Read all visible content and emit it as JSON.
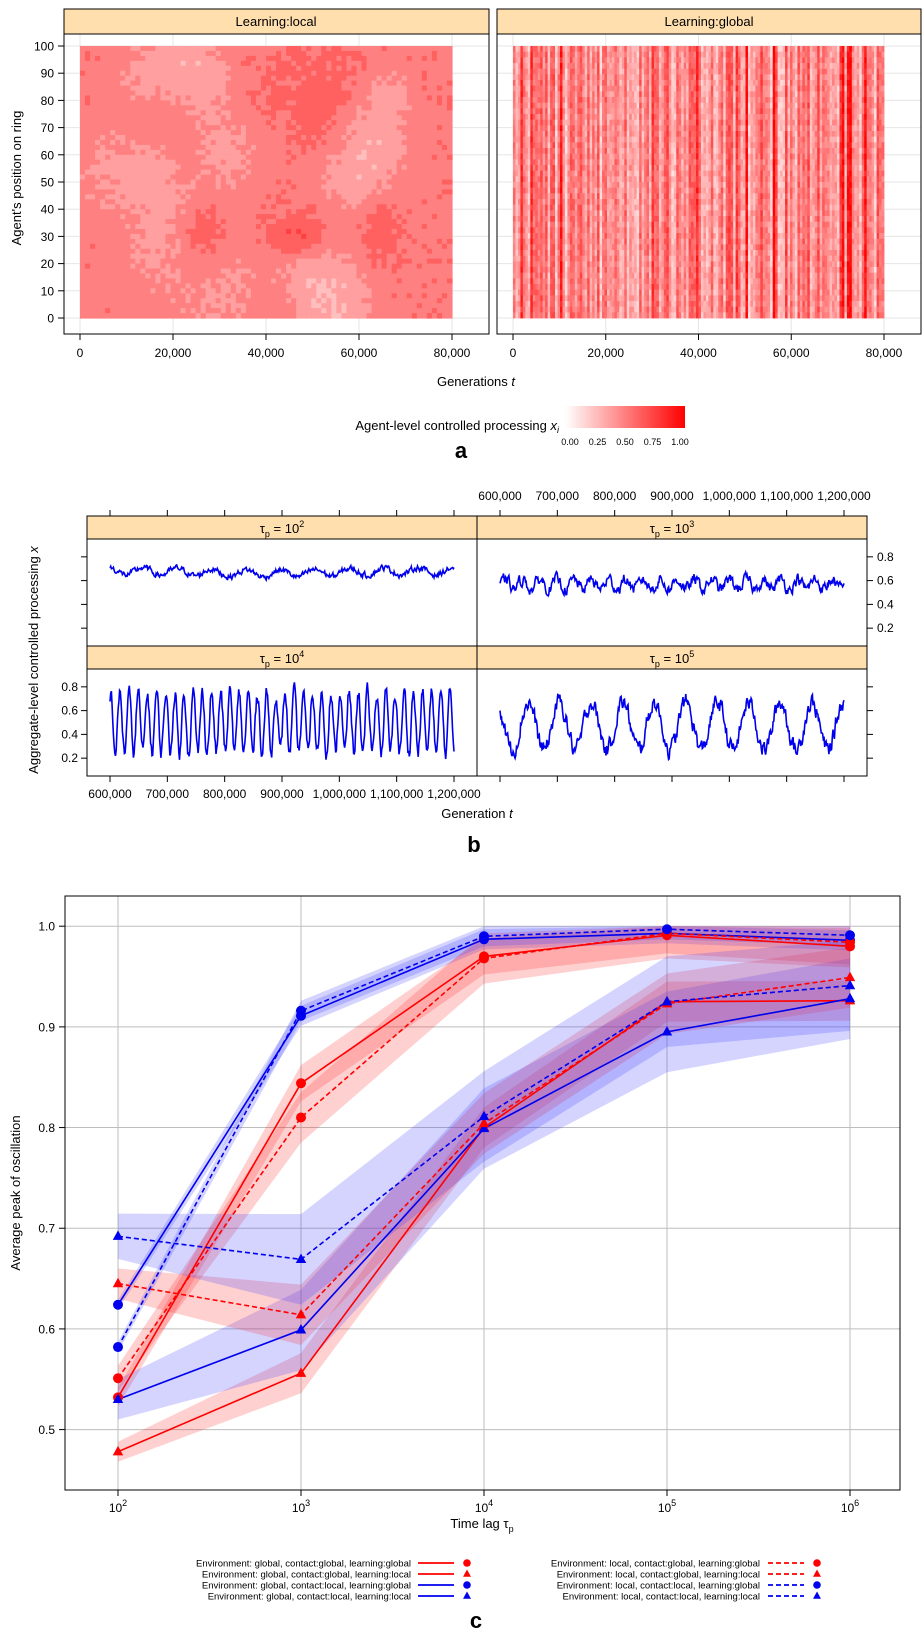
{
  "chart_data": [
    {
      "type": "heatmap",
      "panel_label": "a",
      "xlabel": "Generations",
      "xlabel_var": "t",
      "ylabel": "Agent's position on ring",
      "xlim": [
        0,
        80000
      ],
      "ylim": [
        0,
        100
      ],
      "x_ticks": [
        0,
        20000,
        40000,
        60000,
        80000
      ],
      "x_tick_labels": [
        "0",
        "20,000",
        "40,000",
        "60,000",
        "80,000"
      ],
      "y_ticks": [
        0,
        10,
        20,
        30,
        40,
        50,
        60,
        70,
        80,
        90,
        100
      ],
      "y_tick_labels": [
        "0",
        "10",
        "20",
        "30",
        "40",
        "50",
        "60",
        "70",
        "80",
        "90",
        "100"
      ],
      "panels": [
        {
          "title": "Learning:local",
          "pattern": "patchy"
        },
        {
          "title": "Learning:global",
          "pattern": "vertical-bands"
        }
      ],
      "colorbar": {
        "label": "Agent-level controlled processing",
        "label_var": "x",
        "label_sub": "i",
        "range": [
          0,
          1
        ],
        "ticks": [
          "0.00",
          "0.25",
          "0.50",
          "0.75",
          "1.00"
        ],
        "colors": [
          "#ffffff",
          "#ff0000"
        ]
      },
      "grid": true
    },
    {
      "type": "line",
      "panel_label": "b",
      "xlabel": "Generation",
      "xlabel_var": "t",
      "ylabel": "Aggregate-level controlled processing",
      "ylabel_var": "x",
      "xlim": [
        600000,
        1200000
      ],
      "ylim": [
        0.05,
        0.95
      ],
      "x_ticks": [
        600000,
        700000,
        800000,
        900000,
        1000000,
        1100000,
        1200000
      ],
      "x_tick_labels": [
        "600,000",
        "700,000",
        "800,000",
        "900,000",
        "1,000,000",
        "1,100,000",
        "1,200,000"
      ],
      "y_ticks": [
        0.2,
        0.4,
        0.6,
        0.8
      ],
      "y_tick_labels": [
        "0.2",
        "0.4",
        "0.6",
        "0.8"
      ],
      "series_color": "#0000ee",
      "panels": [
        {
          "title_base": "τ",
          "title_sub": "p",
          "title_mid": " = 10",
          "title_exp": "2",
          "mean": 0.67,
          "amplitude": 0.03,
          "period": 60000,
          "noise": 0.02
        },
        {
          "title_base": "τ",
          "title_sub": "p",
          "title_mid": " = 10",
          "title_exp": "3",
          "mean": 0.57,
          "amplitude": 0.04,
          "period": 30000,
          "noise": 0.04
        },
        {
          "title_base": "τ",
          "title_sub": "p",
          "title_mid": " = 10",
          "title_exp": "4",
          "mean": 0.5,
          "amplitude": 0.25,
          "period": 16000,
          "noise": 0.05
        },
        {
          "title_base": "τ",
          "title_sub": "p",
          "title_mid": " = 10",
          "title_exp": "5",
          "mean": 0.47,
          "amplitude": 0.2,
          "period": 55000,
          "noise": 0.06
        }
      ]
    },
    {
      "type": "line",
      "panel_label": "c",
      "xlabel": "Time lag",
      "xlabel_base": "τ",
      "xlabel_sub": "p",
      "ylabel": "Average peak of oscillation",
      "xscale": "log",
      "x": [
        100,
        1000,
        10000,
        100000,
        1000000
      ],
      "x_tick_base": "10",
      "x_tick_exps": [
        "2",
        "3",
        "4",
        "5",
        "6"
      ],
      "ylim": [
        0.44,
        1.03
      ],
      "y_ticks": [
        0.5,
        0.6,
        0.7,
        0.8,
        0.9,
        1.0
      ],
      "y_tick_labels": [
        "0.5",
        "0.6",
        "0.7",
        "0.8",
        "0.9",
        "1.0"
      ],
      "grid": true,
      "legend_position": "bottom",
      "series": [
        {
          "name": "Environment: global, contact:global, learning:global",
          "color": "#ff0000",
          "dash": "solid",
          "marker": "circle",
          "values": [
            0.532,
            0.844,
            0.97,
            0.991,
            0.98
          ],
          "band": 0.018
        },
        {
          "name": "Environment: global, contact:global, learning:local",
          "color": "#ff0000",
          "dash": "solid",
          "marker": "triangle",
          "values": [
            0.478,
            0.556,
            0.8,
            0.925,
            0.926
          ],
          "band": 0.02
        },
        {
          "name": "Environment: global, contact:local, learning:global",
          "color": "#0000ee",
          "dash": "solid",
          "marker": "circle",
          "values": [
            0.624,
            0.911,
            0.987,
            0.993,
            0.986
          ],
          "band": 0.01
        },
        {
          "name": "Environment: global, contact:local, learning:local",
          "color": "#0000ee",
          "dash": "solid",
          "marker": "triangle",
          "values": [
            0.53,
            0.599,
            0.799,
            0.895,
            0.928
          ],
          "band": 0.04
        },
        {
          "name": "Environment: local, contact:global, learning:global",
          "color": "#ff0000",
          "dash": "dashed",
          "marker": "circle",
          "values": [
            0.551,
            0.81,
            0.968,
            0.993,
            0.984
          ],
          "band": 0.025
        },
        {
          "name": "Environment: local, contact:global, learning:local",
          "color": "#ff0000",
          "dash": "dashed",
          "marker": "triangle",
          "values": [
            0.645,
            0.614,
            0.804,
            0.923,
            0.949
          ],
          "band": 0.03
        },
        {
          "name": "Environment: local, contact:local, learning:global",
          "color": "#0000ee",
          "dash": "dashed",
          "marker": "circle",
          "values": [
            0.582,
            0.916,
            0.99,
            0.997,
            0.991
          ],
          "band": 0.01
        },
        {
          "name": "Environment: local, contact:local, learning:local",
          "color": "#0000ee",
          "dash": "dashed",
          "marker": "triangle",
          "values": [
            0.692,
            0.669,
            0.811,
            0.925,
            0.941
          ],
          "band": 0.045
        }
      ]
    }
  ]
}
